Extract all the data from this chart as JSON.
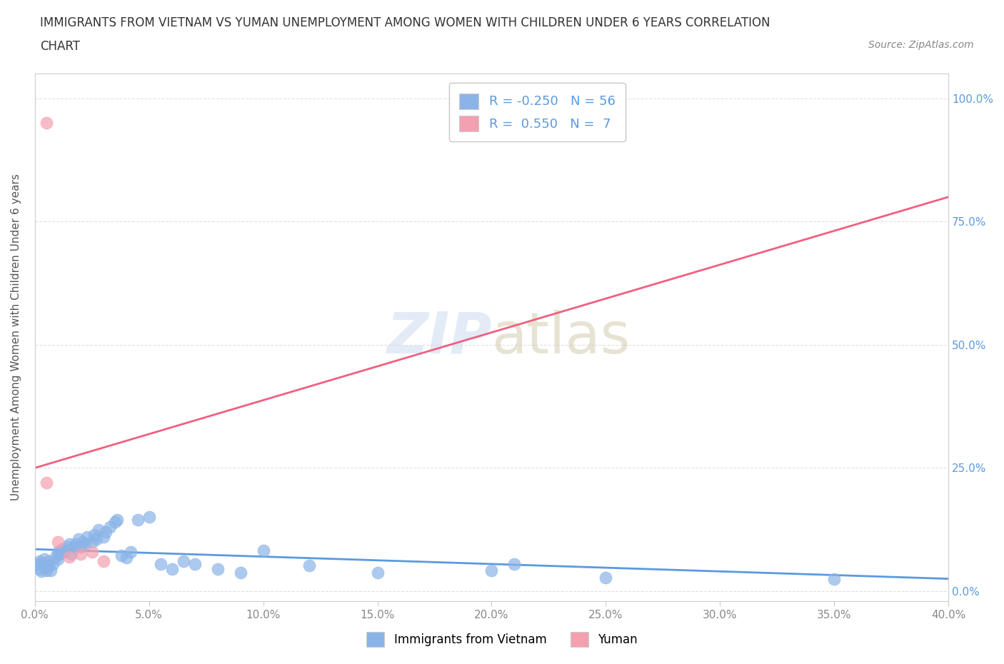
{
  "title_line1": "IMMIGRANTS FROM VIETNAM VS YUMAN UNEMPLOYMENT AMONG WOMEN WITH CHILDREN UNDER 6 YEARS CORRELATION",
  "title_line2": "CHART",
  "source": "Source: ZipAtlas.com",
  "ylabel_label": "Unemployment Among Women with Children Under 6 years",
  "xlim": [
    0.0,
    0.4
  ],
  "ylim": [
    -0.02,
    1.05
  ],
  "blue_color": "#8AB4E8",
  "pink_color": "#F4A0B0",
  "blue_line_color": "#5A9AE0",
  "pink_line_color": "#F06080",
  "legend_blue_label": "R = -0.250   N = 56",
  "legend_pink_label": "R =  0.550   N =  7",
  "legend_bottom_blue": "Immigrants from Vietnam",
  "legend_bottom_pink": "Yuman",
  "watermark_zip": "ZIP",
  "watermark_atlas": "atlas",
  "blue_scatter_x": [
    0.001,
    0.002,
    0.002,
    0.003,
    0.003,
    0.004,
    0.004,
    0.005,
    0.005,
    0.006,
    0.006,
    0.007,
    0.008,
    0.009,
    0.01,
    0.01,
    0.011,
    0.012,
    0.013,
    0.014,
    0.015,
    0.016,
    0.017,
    0.018,
    0.019,
    0.02,
    0.021,
    0.022,
    0.023,
    0.025,
    0.026,
    0.027,
    0.028,
    0.03,
    0.031,
    0.033,
    0.035,
    0.036,
    0.038,
    0.04,
    0.042,
    0.045,
    0.05,
    0.055,
    0.06,
    0.065,
    0.07,
    0.08,
    0.09,
    0.1,
    0.12,
    0.15,
    0.2,
    0.21,
    0.25,
    0.35
  ],
  "blue_scatter_y": [
    0.055,
    0.045,
    0.06,
    0.04,
    0.055,
    0.05,
    0.065,
    0.055,
    0.042,
    0.05,
    0.06,
    0.042,
    0.055,
    0.07,
    0.065,
    0.08,
    0.075,
    0.085,
    0.08,
    0.09,
    0.095,
    0.075,
    0.09,
    0.095,
    0.105,
    0.09,
    0.1,
    0.095,
    0.11,
    0.1,
    0.115,
    0.105,
    0.125,
    0.11,
    0.12,
    0.13,
    0.14,
    0.145,
    0.072,
    0.068,
    0.08,
    0.145,
    0.15,
    0.055,
    0.045,
    0.06,
    0.055,
    0.045,
    0.038,
    0.082,
    0.052,
    0.038,
    0.042,
    0.055,
    0.028,
    0.025
  ],
  "pink_scatter_x": [
    0.005,
    0.005,
    0.01,
    0.015,
    0.02,
    0.025,
    0.03
  ],
  "pink_scatter_y": [
    0.95,
    0.22,
    0.1,
    0.07,
    0.075,
    0.08,
    0.06
  ],
  "blue_trend_x": [
    0.0,
    0.4
  ],
  "blue_trend_y": [
    0.085,
    0.025
  ],
  "pink_trend_x": [
    0.0,
    0.4
  ],
  "pink_trend_y": [
    0.25,
    0.8
  ],
  "background_color": "#FFFFFF",
  "grid_color": "#DDDDDD",
  "title_color": "#333333",
  "axis_label_color": "#555555",
  "tick_color": "#888888",
  "right_tick_color": "#5A9AE0"
}
